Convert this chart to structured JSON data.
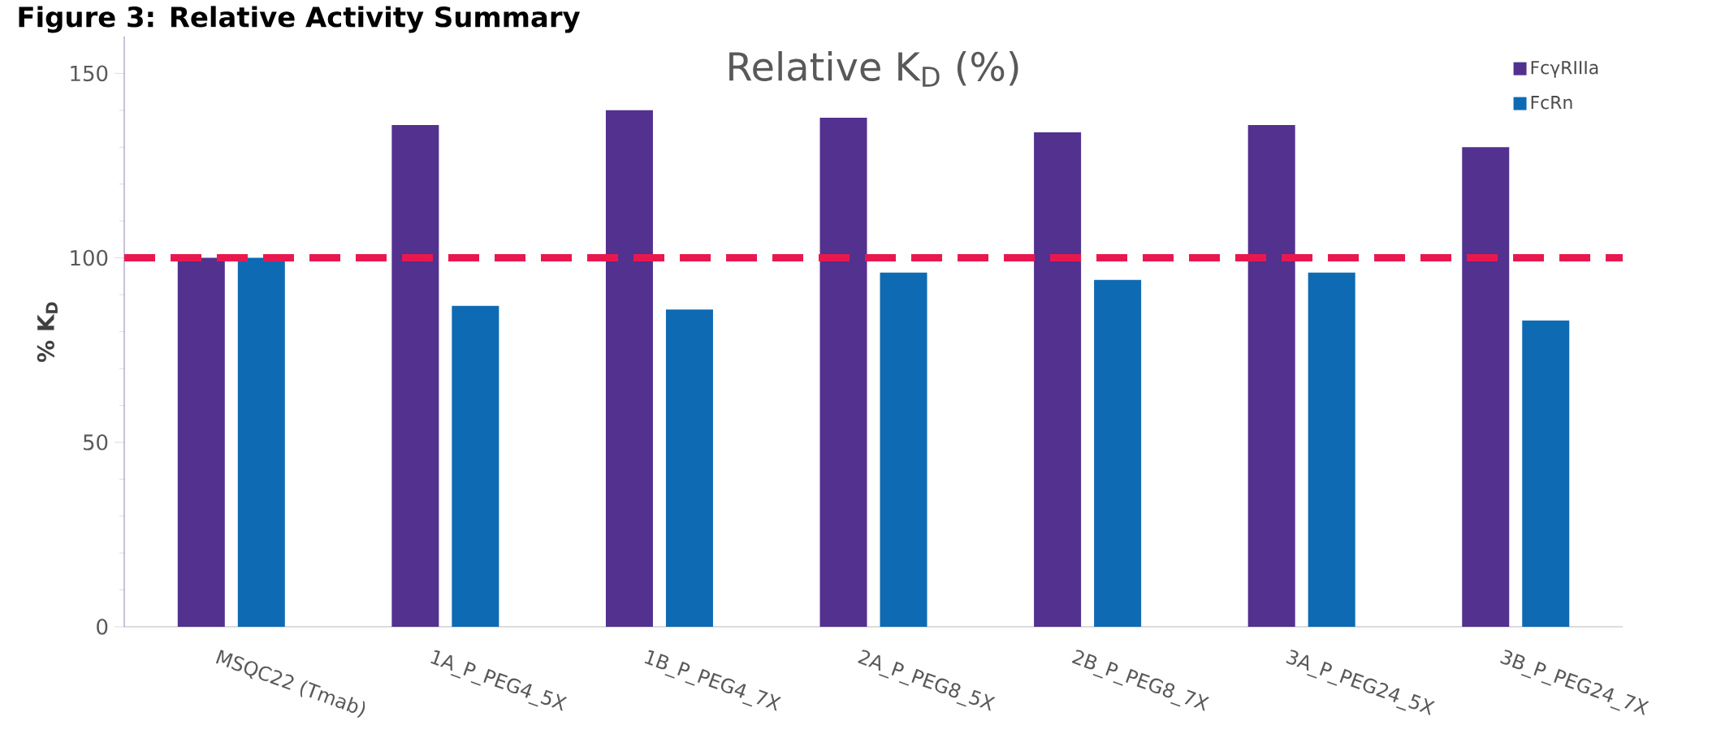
{
  "chart_data": {
    "type": "bar",
    "title": "Figure 3: Relative Activity Summary",
    "subtitle": "Relative K$_{D}$ (%)",
    "ylabel": "% K$_{D}$",
    "categories": [
      "MSQC22 (Tmab)",
      "1A_P_PEG4_5X",
      "1B_P_PEG4_7X",
      "2A_P_PEG8_5X",
      "2B_P_PEG8_7X",
      "3A_P_PEG24_5X",
      "3B_P_PEG24_7X"
    ],
    "series": [
      {
        "name": "FcγRIIIa",
        "color": "#52318f",
        "values": [
          100,
          136,
          140,
          138,
          134,
          136,
          130
        ]
      },
      {
        "name": "FcRn",
        "color": "#0f6ab4",
        "values": [
          100,
          87,
          86,
          96,
          94,
          96,
          83
        ]
      }
    ],
    "ylim": [
      0,
      160
    ],
    "yticks": [
      0,
      50,
      100,
      150
    ],
    "ref_lines": [
      {
        "axis": "y",
        "value": 100,
        "color": "#e8184f",
        "line_style": "dashed"
      }
    ],
    "legend": "top right",
    "grid": false
  }
}
